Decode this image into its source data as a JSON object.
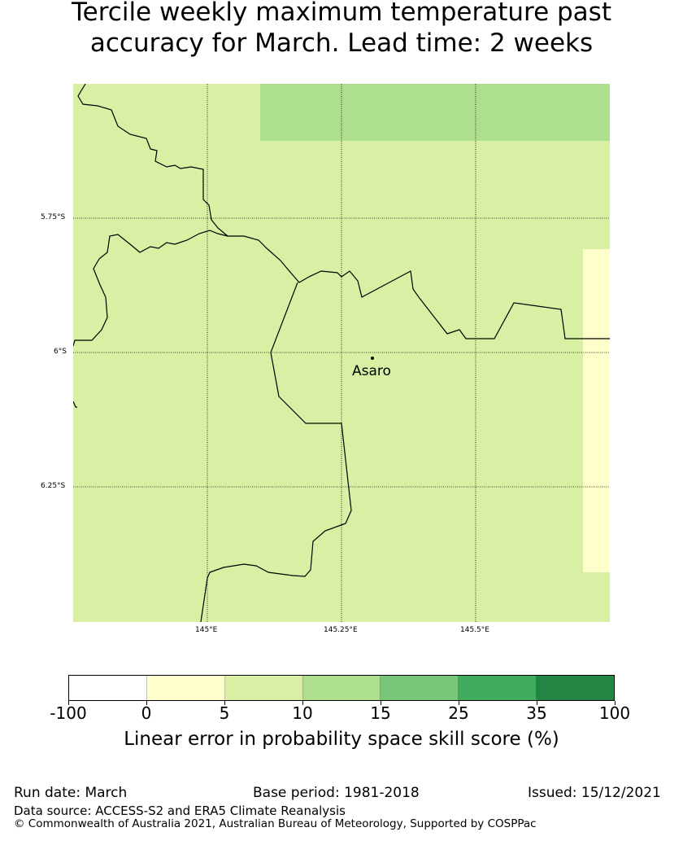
{
  "title": {
    "line1": "Tercile weekly maximum temperature past",
    "line2": "accuracy for March. Lead time: 2 weeks"
  },
  "map": {
    "lat_labels": [
      "5.75°S",
      "6°S",
      "6.25°S"
    ],
    "lon_labels": [
      "145°E",
      "145.25°E",
      "145.5°E"
    ],
    "place": "Asaro",
    "colors": {
      "base": "#d9efa3",
      "higher": "#addf8e",
      "lower": "#ffffcc"
    }
  },
  "colorbar": {
    "ticks": [
      "-100",
      "0",
      "5",
      "10",
      "15",
      "25",
      "35",
      "100"
    ],
    "colors": [
      "#ffffff",
      "#ffffcc",
      "#d9efa3",
      "#addf8e",
      "#78c679",
      "#41ab5d",
      "#238443"
    ],
    "label": "Linear error in probability space skill score (%)"
  },
  "footer": {
    "run_date": "Run date: March",
    "base_period": "Base period: 1981-2018",
    "issued": "Issued: 15/12/2021",
    "source": "Data source: ACCESS-S2 and ERA5 Climate Reanalysis",
    "copyright": "© Commonwealth of Australia 2021, Australian Bureau of Meteorology, Supported by COSPPac"
  }
}
